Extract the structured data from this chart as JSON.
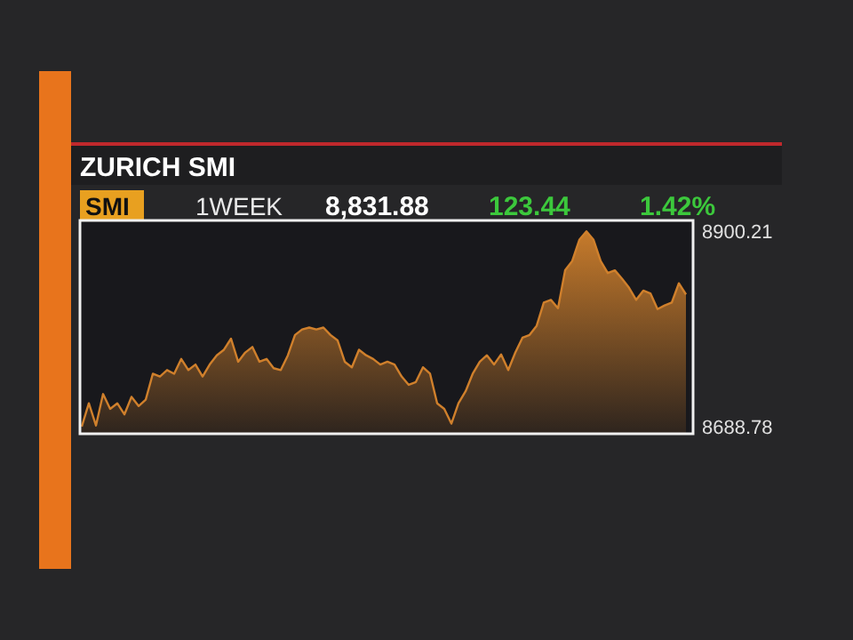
{
  "chart_data": {
    "type": "area",
    "title": "ZURICH SMI",
    "annotations": [
      "SMI",
      "1WEEK",
      "8,831.88",
      "123.44",
      "1.42%"
    ],
    "series": [
      {
        "color": "#d0802c",
        "values": [
          8688.78,
          8714,
          8690,
          8724,
          8708,
          8714,
          8702,
          8721,
          8711,
          8718,
          8746,
          8743,
          8750,
          8746,
          8762,
          8750,
          8756,
          8743,
          8756,
          8766,
          8772,
          8784,
          8759,
          8769,
          8775,
          8759,
          8762,
          8752,
          8750,
          8766,
          8788,
          8794,
          8796,
          8794,
          8796,
          8788,
          8782,
          8759,
          8753,
          8772,
          8766,
          8762,
          8756,
          8759,
          8756,
          8743,
          8734,
          8737,
          8753,
          8746,
          8714,
          8708,
          8692,
          8714,
          8727,
          8746,
          8759,
          8766,
          8756,
          8767,
          8750,
          8769,
          8785,
          8788,
          8798,
          8823,
          8826,
          8817,
          8858,
          8868,
          8891,
          8900.21,
          8891,
          8868,
          8855,
          8858,
          8849,
          8839,
          8826,
          8836,
          8833,
          8816,
          8820,
          8823,
          8844,
          8831.88
        ]
      }
    ],
    "categories": [
      null,
      null,
      null,
      null,
      null,
      null,
      null,
      null,
      null,
      null,
      null,
      null,
      null,
      null,
      null,
      null,
      null,
      null,
      null,
      null,
      null,
      null,
      null,
      null,
      null,
      null,
      null,
      null,
      null,
      null,
      null,
      null,
      null,
      null,
      null,
      null,
      null,
      null,
      null,
      null,
      null,
      null,
      null,
      null,
      null,
      null,
      null,
      null,
      null,
      null,
      null,
      null,
      null,
      null,
      null,
      null,
      null,
      null,
      null,
      null,
      null,
      null,
      null,
      null,
      null,
      null,
      null,
      null,
      null,
      null,
      null,
      null,
      null,
      null,
      null,
      null,
      null,
      null,
      null,
      null,
      null,
      null,
      null,
      null,
      null,
      null
    ],
    "ylim": [
      8681,
      8912
    ],
    "yticks": [
      8688.78,
      8900.21
    ],
    "tick_labels": "y"
  }
}
